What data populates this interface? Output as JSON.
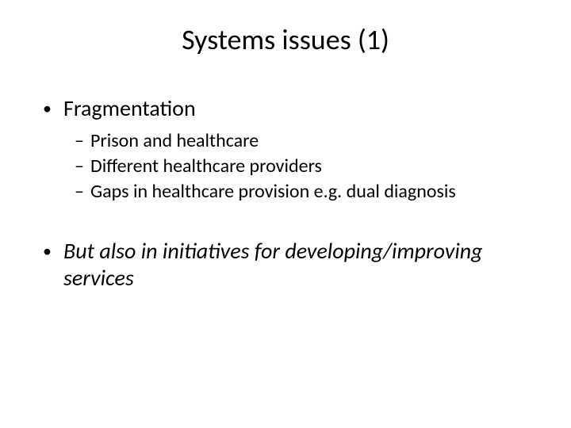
{
  "slide": {
    "title": "Systems issues (1)",
    "title_fontsize": 36,
    "background_color": "#ffffff",
    "text_color": "#000000",
    "bullets": {
      "level1_marker": "•",
      "level2_marker": "–",
      "item1": {
        "text": "Fragmentation",
        "italic": false,
        "sub": [
          "Prison and healthcare",
          "Different healthcare providers",
          "Gaps in healthcare provision e.g. dual diagnosis"
        ]
      },
      "item2": {
        "text": "But also in initiatives for developing/improving services",
        "italic": true
      }
    },
    "fontsize_l1": 28,
    "fontsize_l2": 24
  }
}
